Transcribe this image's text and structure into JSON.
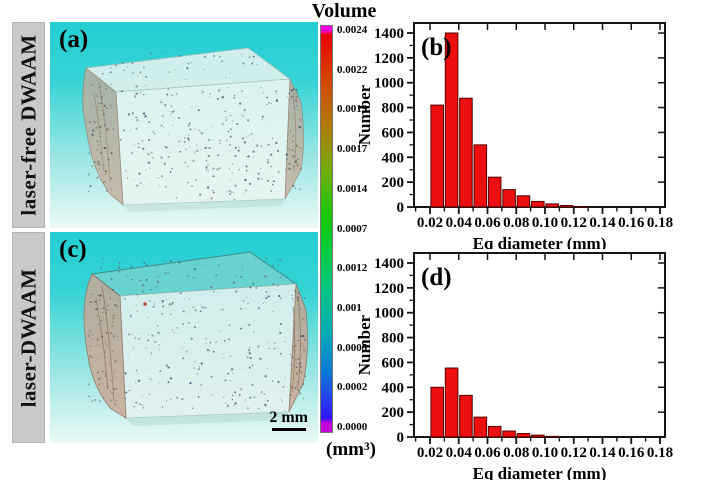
{
  "figure": {
    "rows": {
      "a": {
        "letter": "(a)",
        "row_label": "laser-free DWAAM"
      },
      "c": {
        "letter": "(c)",
        "row_label": "laser-DWAAM",
        "scale_bar_label": "2 mm"
      }
    },
    "colorbar": {
      "title": "Volume",
      "unit": "(mm³)",
      "labels": [
        "0.0024",
        "0.0022",
        "0.0019",
        "0.0017",
        "0.0014",
        "0.0007",
        "0.0012",
        "0.001",
        "0.0005",
        "0.0002",
        "0.0000"
      ],
      "top_color": "#ea0000",
      "bottom_color": "#3114f2",
      "cap_color": "#e000d8"
    }
  },
  "chart_data": [
    {
      "id": "b",
      "type": "bar",
      "panel_letter": "(b)",
      "xlabel": "Eq diameter (mm)",
      "ylabel": "Number",
      "bin_start": 0.02,
      "bin_width": 0.01,
      "values": [
        820,
        1400,
        875,
        500,
        240,
        140,
        90,
        45,
        25,
        12,
        4
      ],
      "xtick_labels": [
        "0.02",
        "0.04",
        "0.06",
        "0.08",
        "0.10",
        "0.12",
        "0.14",
        "0.16",
        "0.18"
      ],
      "ytick_values": [
        0,
        200,
        400,
        600,
        800,
        1000,
        1200,
        1400
      ],
      "ylim": [
        0,
        1490
      ],
      "xlim": [
        0.008,
        0.184
      ],
      "bar_color": "#ed0f0f",
      "bar_edge": "#550000"
    },
    {
      "id": "d",
      "type": "bar",
      "panel_letter": "(d)",
      "xlabel": "Eq diameter (mm)",
      "ylabel": "Number",
      "bin_start": 0.02,
      "bin_width": 0.01,
      "values": [
        400,
        555,
        335,
        160,
        85,
        48,
        28,
        15,
        5
      ],
      "xtick_labels": [
        "0.02",
        "0.04",
        "0.06",
        "0.08",
        "0.10",
        "0.12",
        "0.14",
        "0.16",
        "0.18"
      ],
      "ytick_values": [
        0,
        200,
        400,
        600,
        800,
        1000,
        1200,
        1400
      ],
      "ylim": [
        0,
        1490
      ],
      "xlim": [
        0.008,
        0.184
      ],
      "bar_color": "#ed0f0f",
      "bar_edge": "#550000"
    }
  ]
}
